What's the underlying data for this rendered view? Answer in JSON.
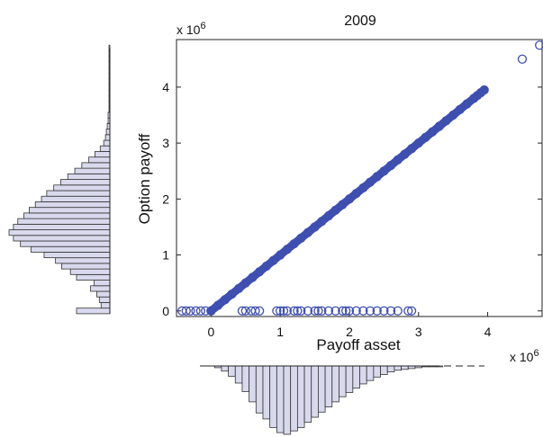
{
  "chart_data": {
    "type": "scatter",
    "title": "2009",
    "xlabel": "Payoff asset",
    "ylabel": "Option payoff",
    "x_exponent_label": "x 10",
    "x_exponent": "6",
    "y_exponent_label": "x 10",
    "y_exponent": "6",
    "xlim": [
      -0.5,
      4.8
    ],
    "ylim": [
      -0.1,
      4.85
    ],
    "xticks": [
      0,
      1,
      2,
      3,
      4
    ],
    "yticks": [
      0,
      1,
      2,
      3,
      4
    ],
    "grid": false,
    "marker": "open-circle",
    "colors": {
      "marker": "#3f4fb0",
      "hist_fill": "#d8d9ec",
      "hist_edge": "#333333"
    },
    "series": [
      {
        "description": "points on diagonal, option payoff = asset payoff for positive asset payoff",
        "x": [
          0.0,
          0.1,
          0.2,
          0.3,
          0.4,
          0.5,
          0.6,
          0.7,
          0.8,
          0.9,
          1.0,
          1.1,
          1.2,
          1.3,
          1.4,
          1.5,
          1.6,
          1.7,
          1.8,
          1.9,
          2.0,
          2.1,
          2.2,
          2.3,
          2.4,
          2.5,
          2.6,
          2.7,
          2.8,
          2.9,
          3.0,
          3.1,
          3.2,
          3.3,
          3.4,
          3.5,
          3.6,
          3.7,
          3.8,
          3.85,
          3.9,
          3.95,
          4.5,
          4.75
        ],
        "y": [
          0.0,
          0.1,
          0.2,
          0.3,
          0.4,
          0.5,
          0.6,
          0.7,
          0.8,
          0.9,
          1.0,
          1.1,
          1.2,
          1.3,
          1.4,
          1.5,
          1.6,
          1.7,
          1.8,
          1.9,
          2.0,
          2.1,
          2.2,
          2.3,
          2.4,
          2.5,
          2.6,
          2.7,
          2.8,
          2.9,
          3.0,
          3.1,
          3.2,
          3.3,
          3.4,
          3.5,
          3.6,
          3.7,
          3.8,
          3.85,
          3.9,
          3.95,
          4.5,
          4.75
        ]
      },
      {
        "description": "points at zero option payoff",
        "x": [
          -0.42,
          -0.36,
          -0.3,
          -0.22,
          -0.15,
          -0.08,
          0.0,
          0.45,
          0.5,
          0.58,
          0.64,
          0.7,
          0.95,
          1.0,
          1.05,
          1.1,
          1.2,
          1.25,
          1.3,
          1.4,
          1.5,
          1.55,
          1.6,
          1.7,
          1.8,
          1.9,
          1.95,
          2.0,
          2.1,
          2.2,
          2.3,
          2.4,
          2.5,
          2.6,
          2.7,
          2.85,
          2.9
        ],
        "y": [
          0,
          0,
          0,
          0,
          0,
          0,
          0,
          0,
          0,
          0,
          0,
          0,
          0,
          0,
          0,
          0,
          0,
          0,
          0,
          0,
          0,
          0,
          0,
          0,
          0,
          0,
          0,
          0,
          0,
          0,
          0,
          0,
          0,
          0,
          0,
          0,
          0
        ]
      }
    ],
    "marginal_histogram_y": {
      "description": "left marginal histogram of option payoff, bars extend leftward",
      "bin_centers": [
        0.0,
        0.1,
        0.2,
        0.3,
        0.4,
        0.5,
        0.6,
        0.7,
        0.8,
        0.9,
        1.0,
        1.1,
        1.2,
        1.3,
        1.4,
        1.5,
        1.6,
        1.7,
        1.8,
        1.9,
        2.0,
        2.1,
        2.2,
        2.3,
        2.4,
        2.5,
        2.6,
        2.7,
        2.8,
        2.9,
        3.0,
        3.1,
        3.2,
        3.3,
        3.4,
        3.5,
        3.6,
        3.7,
        3.8,
        3.9,
        4.0,
        4.1,
        4.2,
        4.3,
        4.4,
        4.5,
        4.6,
        4.7
      ],
      "counts": [
        38,
        10,
        12,
        15,
        22,
        18,
        38,
        45,
        55,
        62,
        75,
        90,
        102,
        110,
        115,
        110,
        105,
        98,
        92,
        85,
        78,
        72,
        64,
        56,
        48,
        40,
        32,
        24,
        17,
        11,
        7,
        5,
        4,
        3,
        2,
        2,
        1,
        1,
        1,
        1,
        1,
        1,
        1,
        1,
        1,
        1,
        1,
        1
      ]
    },
    "marginal_histogram_x": {
      "description": "bottom marginal histogram of payoff asset, bars extend downward",
      "bin_centers": [
        0.1,
        0.2,
        0.3,
        0.4,
        0.5,
        0.6,
        0.7,
        0.8,
        0.9,
        1.0,
        1.1,
        1.2,
        1.3,
        1.4,
        1.5,
        1.6,
        1.7,
        1.8,
        1.9,
        2.0,
        2.1,
        2.2,
        2.3,
        2.4,
        2.5,
        2.6,
        2.7,
        2.8,
        2.9,
        3.0,
        3.1,
        3.2,
        3.3
      ],
      "counts": [
        2,
        6,
        12,
        20,
        30,
        42,
        55,
        62,
        72,
        78,
        80,
        76,
        72,
        66,
        60,
        54,
        48,
        42,
        36,
        31,
        26,
        21,
        17,
        13,
        10,
        7,
        5,
        4,
        3,
        2,
        1,
        1,
        1
      ]
    }
  }
}
